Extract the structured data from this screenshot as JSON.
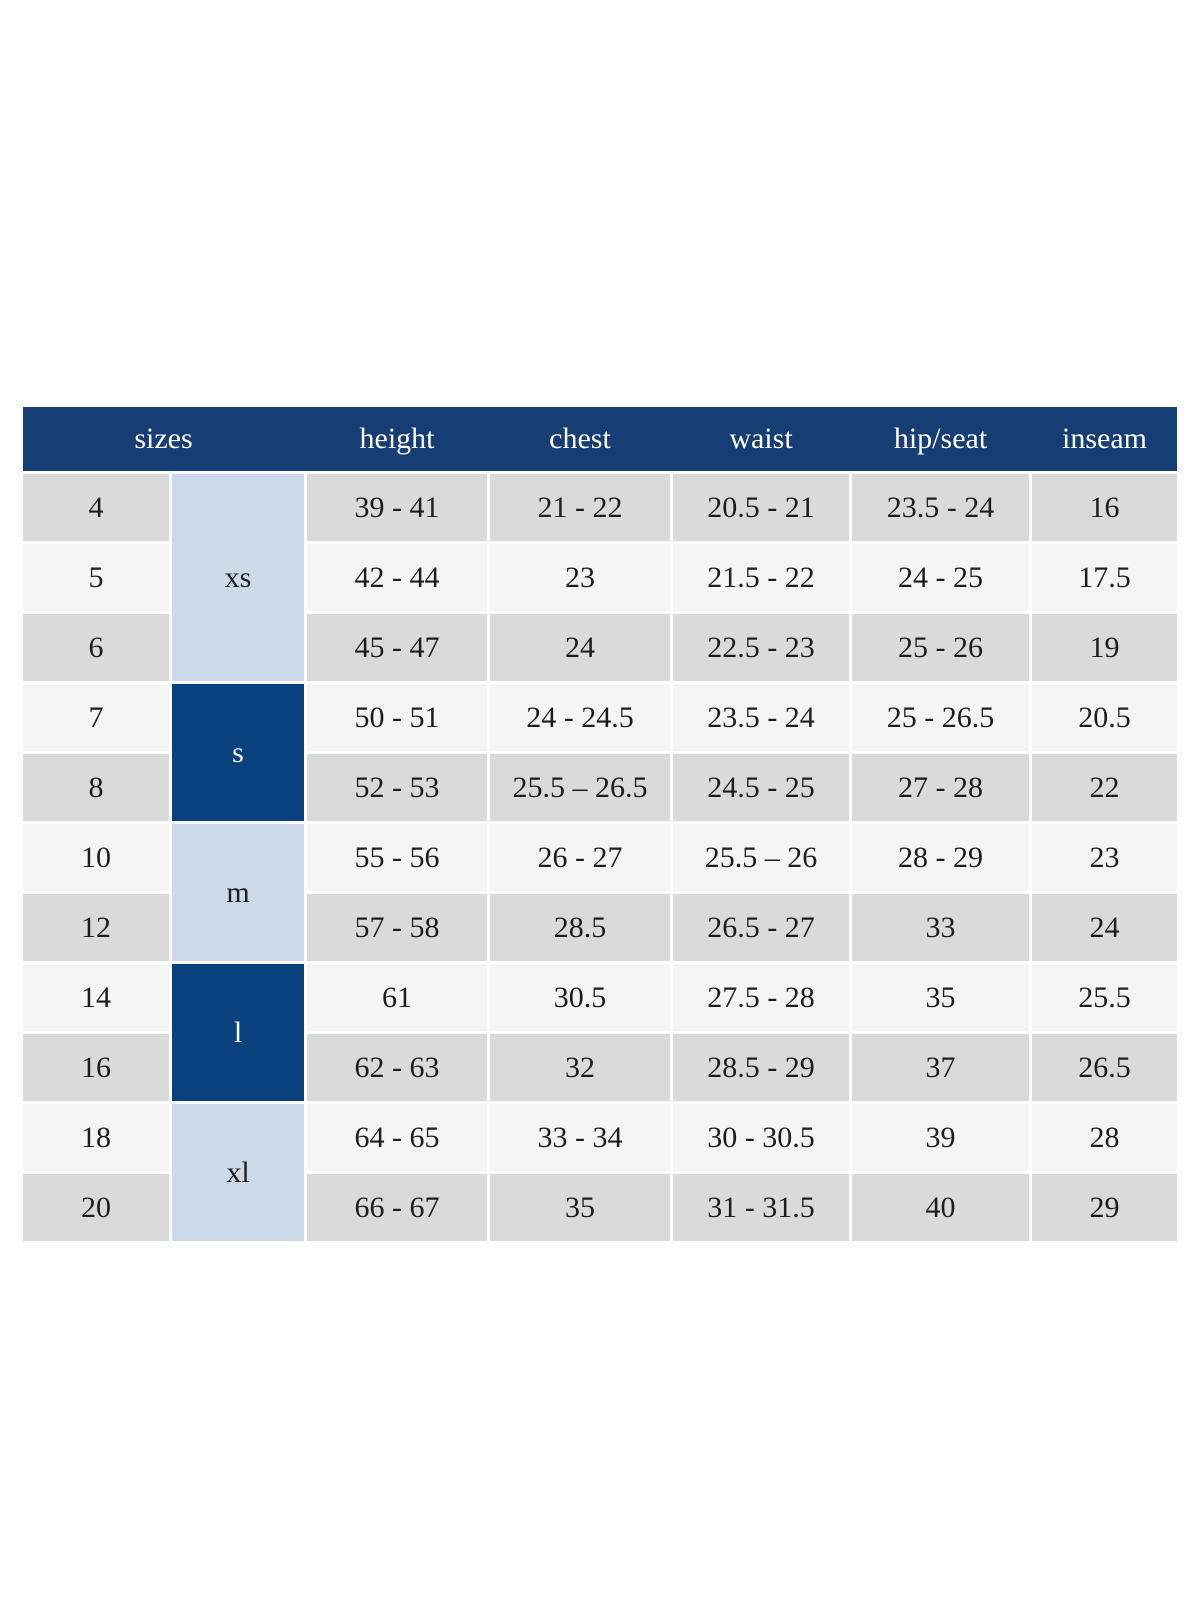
{
  "colors": {
    "page_bg": "#ffffff",
    "header_bg": "#173e74",
    "dark_cell_bg": "#09417f",
    "light_cell_bg": "#ccd9e8",
    "row_gray": "#dadada",
    "row_light": "#f5f5f4",
    "header_text": "#ffffff",
    "text_dark": "#1d1d1f"
  },
  "table": {
    "header": {
      "sizes": "sizes",
      "columns": [
        "height",
        "chest",
        "waist",
        "hip/seat",
        "inseam"
      ]
    },
    "groups": [
      {
        "label": "xs",
        "style": "light",
        "rows": [
          {
            "size": "4",
            "height": "39 - 41",
            "chest": "21 - 22",
            "waist": "20.5 - 21",
            "hip_seat": "23.5 - 24",
            "inseam": "16"
          },
          {
            "size": "5",
            "height": "42 - 44",
            "chest": "23",
            "waist": "21.5 - 22",
            "hip_seat": "24 - 25",
            "inseam": "17.5"
          },
          {
            "size": "6",
            "height": "45 - 47",
            "chest": "24",
            "waist": "22.5 - 23",
            "hip_seat": "25 - 26",
            "inseam": "19"
          }
        ]
      },
      {
        "label": "s",
        "style": "dark",
        "rows": [
          {
            "size": "7",
            "height": "50 - 51",
            "chest": "24 - 24.5",
            "waist": "23.5 - 24",
            "hip_seat": "25 - 26.5",
            "inseam": "20.5"
          },
          {
            "size": "8",
            "height": "52 - 53",
            "chest": "25.5 – 26.5",
            "waist": "24.5 - 25",
            "hip_seat": "27 - 28",
            "inseam": "22"
          }
        ]
      },
      {
        "label": "m",
        "style": "light",
        "rows": [
          {
            "size": "10",
            "height": "55 - 56",
            "chest": "26 - 27",
            "waist": "25.5 – 26",
            "hip_seat": "28 - 29",
            "inseam": "23"
          },
          {
            "size": "12",
            "height": "57 - 58",
            "chest": "28.5",
            "waist": "26.5 - 27",
            "hip_seat": "33",
            "inseam": "24"
          }
        ]
      },
      {
        "label": "l",
        "style": "dark",
        "rows": [
          {
            "size": "14",
            "height": "61",
            "chest": "30.5",
            "waist": "27.5 - 28",
            "hip_seat": "35",
            "inseam": "25.5"
          },
          {
            "size": "16",
            "height": "62 - 63",
            "chest": "32",
            "waist": "28.5 - 29",
            "hip_seat": "37",
            "inseam": "26.5"
          }
        ]
      },
      {
        "label": "xl",
        "style": "light",
        "rows": [
          {
            "size": "18",
            "height": "64 - 65",
            "chest": "33 - 34",
            "waist": "30 - 30.5",
            "hip_seat": "39",
            "inseam": "28"
          },
          {
            "size": "20",
            "height": "66 - 67",
            "chest": "35",
            "waist": "31 - 31.5",
            "hip_seat": "40",
            "inseam": "29"
          }
        ]
      }
    ]
  }
}
